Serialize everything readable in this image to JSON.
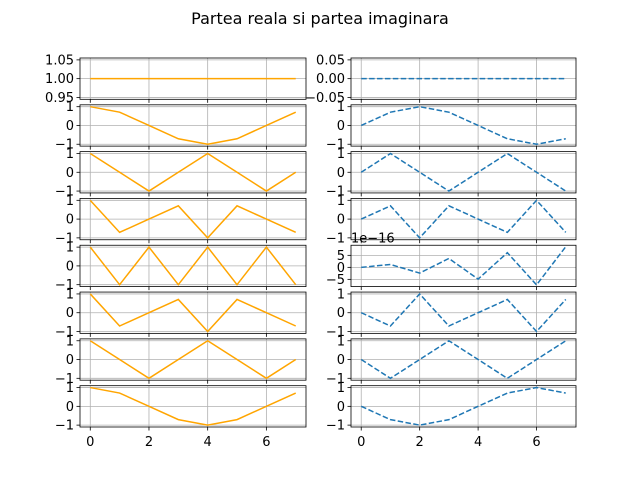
{
  "title": "Partea reala si partea imaginara",
  "colors": {
    "real": "#ffa500",
    "imag": "#1f77b4",
    "grid": "#b0b0b0"
  },
  "chart_data": {
    "type": "line",
    "x": [
      0,
      1,
      2,
      3,
      4,
      5,
      6,
      7
    ],
    "xticks": [
      0,
      2,
      4,
      6
    ],
    "xlim": [
      -0.35,
      7.35
    ],
    "grid": true,
    "panels": [
      {
        "real": {
          "values": [
            1,
            1,
            1,
            1,
            1,
            1,
            1,
            1
          ],
          "ylim": [
            0.945,
            1.055
          ],
          "yticks": [
            0.95,
            1.0,
            1.05
          ],
          "ytick_labels": [
            "0.95",
            "1.00",
            "1.05"
          ]
        },
        "imag": {
          "values": [
            0,
            0,
            0,
            0,
            0,
            0,
            0,
            0
          ],
          "ylim": [
            -0.055,
            0.055
          ],
          "yticks": [
            -0.05,
            0.0,
            0.05
          ],
          "ytick_labels": [
            "−0.05",
            "0.00",
            "0.05"
          ]
        }
      },
      {
        "real": {
          "values": [
            1,
            0.707,
            0,
            -0.707,
            -1,
            -0.707,
            0,
            0.707
          ],
          "ylim": [
            -1.1,
            1.1
          ],
          "yticks": [
            -1,
            0,
            1
          ],
          "ytick_labels": [
            "−1",
            "0",
            "1"
          ]
        },
        "imag": {
          "values": [
            0,
            0.707,
            1,
            0.707,
            0,
            -0.707,
            -1,
            -0.707
          ],
          "ylim": [
            -1.1,
            1.1
          ],
          "yticks": [
            -1,
            0,
            1
          ],
          "ytick_labels": [
            "−1",
            "0",
            "1"
          ]
        }
      },
      {
        "real": {
          "values": [
            1,
            0,
            -1,
            0,
            1,
            0,
            -1,
            0
          ],
          "ylim": [
            -1.1,
            1.1
          ],
          "yticks": [
            -1,
            0,
            1
          ],
          "ytick_labels": [
            "−1",
            "0",
            "1"
          ]
        },
        "imag": {
          "values": [
            0,
            1,
            0,
            -1,
            0,
            1,
            0,
            -1
          ],
          "ylim": [
            -1.1,
            1.1
          ],
          "yticks": [
            -1,
            0,
            1
          ],
          "ytick_labels": [
            "−1",
            "0",
            "1"
          ]
        }
      },
      {
        "real": {
          "values": [
            1,
            -0.707,
            0,
            0.707,
            -1,
            0.707,
            0,
            -0.707
          ],
          "ylim": [
            -1.1,
            1.1
          ],
          "yticks": [
            -1,
            0,
            1
          ],
          "ytick_labels": [
            "−1",
            "0",
            "1"
          ]
        },
        "imag": {
          "values": [
            0,
            0.707,
            -1,
            0.707,
            0,
            -0.707,
            1,
            -0.707
          ],
          "ylim": [
            -1.1,
            1.1
          ],
          "yticks": [
            -1,
            0,
            1
          ],
          "ytick_labels": [
            "−1",
            "0",
            "1"
          ]
        }
      },
      {
        "real": {
          "values": [
            1,
            -1,
            1,
            -1,
            1,
            -1,
            1,
            -1
          ],
          "ylim": [
            -1.1,
            1.1
          ],
          "yticks": [
            -1,
            0,
            1
          ],
          "ytick_labels": [
            "−1",
            "0",
            "1"
          ]
        },
        "imag": {
          "values": [
            0,
            1.2e-16,
            -2.4e-16,
            3.7e-16,
            -4.9e-16,
            6.1e-16,
            -7.3e-16,
            8.6e-16
          ],
          "ylim": [
            -8e-16,
            9.2e-16
          ],
          "yticks": [
            -5e-16,
            0,
            5e-16
          ],
          "ytick_labels": [
            "−5",
            "0",
            "5"
          ],
          "offset_label": "1e−16"
        }
      },
      {
        "real": {
          "values": [
            1,
            -0.707,
            0,
            0.707,
            -1,
            0.707,
            0,
            -0.707
          ],
          "ylim": [
            -1.1,
            1.1
          ],
          "yticks": [
            -1,
            0,
            1
          ],
          "ytick_labels": [
            "−1",
            "0",
            "1"
          ]
        },
        "imag": {
          "values": [
            0,
            -0.707,
            1,
            -0.707,
            0,
            0.707,
            -1,
            0.707
          ],
          "ylim": [
            -1.1,
            1.1
          ],
          "yticks": [
            -1,
            0,
            1
          ],
          "ytick_labels": [
            "−1",
            "0",
            "1"
          ]
        }
      },
      {
        "real": {
          "values": [
            1,
            0,
            -1,
            0,
            1,
            0,
            -1,
            0
          ],
          "ylim": [
            -1.1,
            1.1
          ],
          "yticks": [
            -1,
            0,
            1
          ],
          "ytick_labels": [
            "−1",
            "0",
            "1"
          ]
        },
        "imag": {
          "values": [
            0,
            -1,
            0,
            1,
            0,
            -1,
            0,
            1
          ],
          "ylim": [
            -1.1,
            1.1
          ],
          "yticks": [
            -1,
            0,
            1
          ],
          "ytick_labels": [
            "−1",
            "0",
            "1"
          ]
        }
      },
      {
        "real": {
          "values": [
            1,
            0.707,
            0,
            -0.707,
            -1,
            -0.707,
            0,
            0.707
          ],
          "ylim": [
            -1.1,
            1.1
          ],
          "yticks": [
            -1,
            0,
            1
          ],
          "ytick_labels": [
            "−1",
            "0",
            "1"
          ]
        },
        "imag": {
          "values": [
            0,
            -0.707,
            -1,
            -0.707,
            0,
            0.707,
            1,
            0.707
          ],
          "ylim": [
            -1.1,
            1.1
          ],
          "yticks": [
            -1,
            0,
            1
          ],
          "ytick_labels": [
            "−1",
            "0",
            "1"
          ]
        }
      }
    ]
  }
}
